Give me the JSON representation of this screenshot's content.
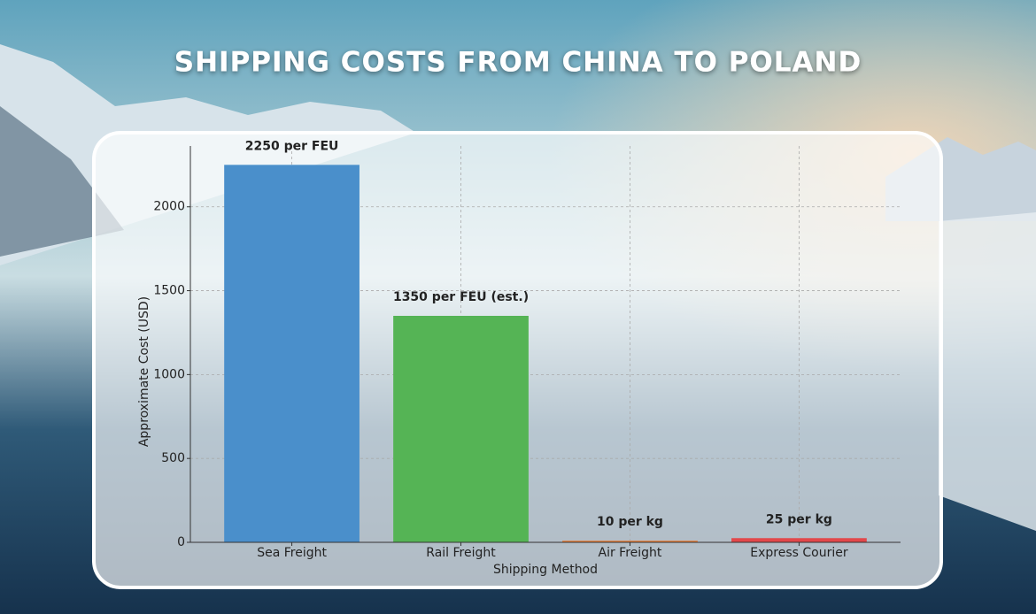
{
  "chart_data": {
    "type": "bar",
    "title": "SHIPPING COSTS FROM CHINA TO POLAND",
    "x_label": "Shipping Method",
    "y_label": "Approximate Cost (USD)",
    "categories": [
      "Sea Freight",
      "Rail Freight",
      "Air Freight",
      "Express Courier"
    ],
    "values": [
      2250,
      1350,
      10,
      25
    ],
    "value_labels": [
      "2250 per FEU",
      "1350 per FEU (est.)",
      "10 per kg",
      "25 per kg"
    ],
    "colors": [
      "#4a8fcb",
      "#55b455",
      "#e6803e",
      "#e2474a"
    ],
    "ylim": [
      0,
      2362.5
    ],
    "yticks": [
      0,
      500,
      1000,
      1500,
      2000
    ],
    "grid": true
  }
}
